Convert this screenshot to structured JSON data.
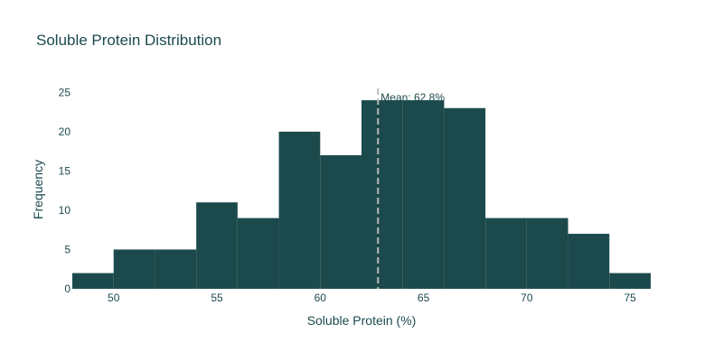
{
  "chart_data": {
    "type": "bar",
    "subtype": "histogram",
    "title": "Soluble Protein Distribution",
    "xlabel": "Soluble Protein (%)",
    "ylabel": "Frequency",
    "bin_width": 2,
    "bins": [
      {
        "start": 48,
        "end": 50,
        "count": 2
      },
      {
        "start": 50,
        "end": 52,
        "count": 5
      },
      {
        "start": 52,
        "end": 54,
        "count": 5
      },
      {
        "start": 54,
        "end": 56,
        "count": 11
      },
      {
        "start": 56,
        "end": 58,
        "count": 9
      },
      {
        "start": 58,
        "end": 60,
        "count": 20
      },
      {
        "start": 60,
        "end": 62,
        "count": 17
      },
      {
        "start": 62,
        "end": 64,
        "count": 24
      },
      {
        "start": 64,
        "end": 66,
        "count": 24
      },
      {
        "start": 66,
        "end": 68,
        "count": 23
      },
      {
        "start": 68,
        "end": 70,
        "count": 9
      },
      {
        "start": 70,
        "end": 72,
        "count": 9
      },
      {
        "start": 72,
        "end": 74,
        "count": 7
      },
      {
        "start": 74,
        "end": 76,
        "count": 2
      }
    ],
    "xlim": [
      48,
      76
    ],
    "ylim": [
      0,
      25.5
    ],
    "xticks": [
      50,
      55,
      60,
      65,
      70,
      75
    ],
    "yticks": [
      0,
      5,
      10,
      15,
      20,
      25
    ],
    "grid": false,
    "bar_color": "#1c4a4c",
    "mean_line": {
      "x": 62.8,
      "label": "Mean: 62.8%",
      "color": "#bbbbbb"
    }
  }
}
